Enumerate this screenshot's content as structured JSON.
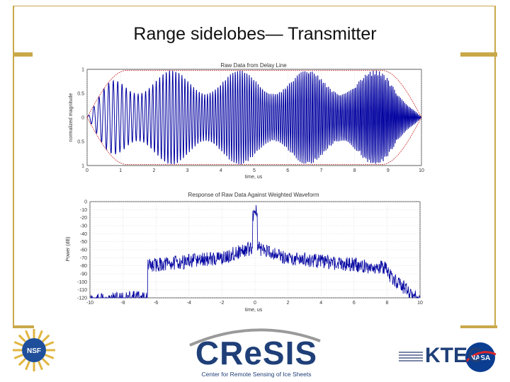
{
  "slide": {
    "title": "Range sidelobes— Transmitter",
    "colors": {
      "accent": "#c9a849",
      "signal": "#0000a0",
      "envelope": "#cc3333"
    }
  },
  "chart_data": [
    {
      "type": "line",
      "title": "Raw Data from Delay Line",
      "xlabel": "time, us",
      "ylabel": "normalized magnitude",
      "xlim": [
        0,
        10
      ],
      "ylim": [
        -1,
        1
      ],
      "x_ticks": [
        "0",
        "1",
        "2",
        "3",
        "4",
        "5",
        "6",
        "7",
        "8",
        "9",
        "10"
      ],
      "y_ticks": [
        "1",
        "0.5",
        "0",
        "0.5",
        "1"
      ],
      "series": [
        {
          "values_desc": "chirp waveform with tapered envelope",
          "envelope_edges_us": [
            0,
            10
          ]
        }
      ]
    },
    {
      "type": "line",
      "title": "Response of Raw Data Against Weighted Waveform",
      "xlabel": "time, us",
      "ylabel": "Power (dB)",
      "xlim": [
        -10,
        10
      ],
      "ylim": [
        -120,
        0
      ],
      "x_ticks": [
        "-10",
        "-8",
        "-6",
        "-4",
        "-2",
        "0",
        "2",
        "4",
        "6",
        "8",
        "10"
      ],
      "y_ticks": [
        "0",
        "-10",
        "-20",
        "-30",
        "-40",
        "-50",
        "-60",
        "-70",
        "-80",
        "-90",
        "-100",
        "-110",
        "-120"
      ],
      "peak_db": 0,
      "peak_time_us": 0
    }
  ],
  "footer": {
    "cresis_word": "CReSIS",
    "cresis_sub": "Center for Remote Sensing of Ice Sheets",
    "nsf_label": "NSF",
    "ktec_label": "KTEC",
    "nasa_label": "NASA"
  }
}
